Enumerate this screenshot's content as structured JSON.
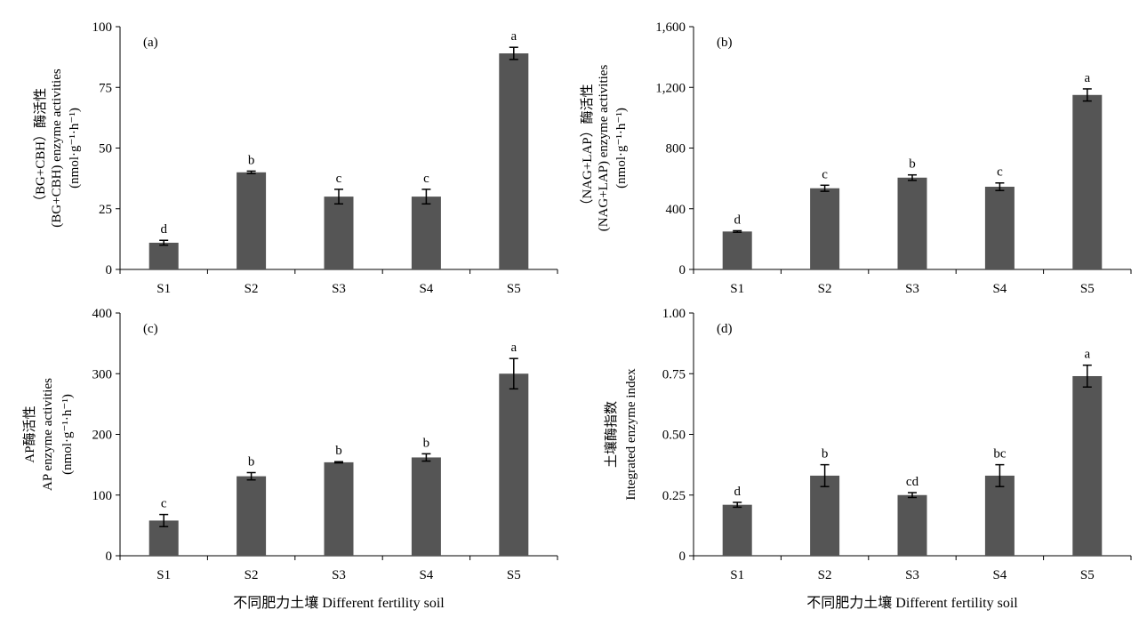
{
  "figure": {
    "xlabel_left": "不同肥力土壤 Different fertility soil",
    "xlabel_right": "不同肥力土壤 Different fertility soil"
  },
  "chart_data": [
    {
      "type": "bar",
      "panel_label": "(a)",
      "categories": [
        "S1",
        "S2",
        "S3",
        "S4",
        "S5"
      ],
      "values": [
        11,
        40,
        30,
        30,
        89
      ],
      "errors": [
        1,
        0.5,
        3,
        3,
        2.5
      ],
      "significance": [
        "d",
        "b",
        "c",
        "c",
        "a"
      ],
      "ylabel_lines": [
        "（BG+CBH）酶活性",
        "(BG+CBH) enzyme activities",
        "(nmol·g⁻¹·h⁻¹)"
      ],
      "ylim": [
        0,
        100
      ],
      "yticks": [
        0,
        25,
        50,
        75,
        100
      ],
      "ytick_labels": [
        "0",
        "25",
        "50",
        "75",
        "100"
      ],
      "bar_color": "#555555"
    },
    {
      "type": "bar",
      "panel_label": "(b)",
      "categories": [
        "S1",
        "S2",
        "S3",
        "S4",
        "S5"
      ],
      "values": [
        250,
        535,
        605,
        545,
        1150
      ],
      "errors": [
        5,
        20,
        18,
        25,
        40
      ],
      "significance": [
        "d",
        "c",
        "b",
        "c",
        "a"
      ],
      "ylabel_lines": [
        "（NAG+LAP）酶活性",
        "(NAG+LAP) enzyme activities",
        "(nmol·g⁻¹·h⁻¹)"
      ],
      "ylim": [
        0,
        1600
      ],
      "yticks": [
        0,
        400,
        800,
        1200,
        1600
      ],
      "ytick_labels": [
        "0",
        "400",
        "800",
        "1,200",
        "1,600"
      ],
      "bar_color": "#555555"
    },
    {
      "type": "bar",
      "panel_label": "(c)",
      "categories": [
        "S1",
        "S2",
        "S3",
        "S4",
        "S5"
      ],
      "values": [
        58,
        131,
        154,
        162,
        300
      ],
      "errors": [
        10,
        6,
        1,
        6,
        25
      ],
      "significance": [
        "c",
        "b",
        "b",
        "b",
        "a"
      ],
      "ylabel_lines": [
        "AP酶活性",
        "AP enzyme activities",
        "(nmol·g⁻¹·h⁻¹)"
      ],
      "ylim": [
        0,
        400
      ],
      "yticks": [
        0,
        100,
        200,
        300,
        400
      ],
      "ytick_labels": [
        "0",
        "100",
        "200",
        "300",
        "400"
      ],
      "bar_color": "#555555"
    },
    {
      "type": "bar",
      "panel_label": "(d)",
      "categories": [
        "S1",
        "S2",
        "S3",
        "S4",
        "S5"
      ],
      "values": [
        0.21,
        0.33,
        0.25,
        0.33,
        0.74
      ],
      "errors": [
        0.01,
        0.045,
        0.01,
        0.045,
        0.045
      ],
      "significance": [
        "d",
        "b",
        "cd",
        "bc",
        "a"
      ],
      "ylabel_lines": [
        "土壤酶指数",
        "Integrated enzyme index"
      ],
      "ylim": [
        0,
        1.0
      ],
      "yticks": [
        0,
        0.25,
        0.5,
        0.75,
        1.0
      ],
      "ytick_labels": [
        "0",
        "0.25",
        "0.50",
        "0.75",
        "1.00"
      ],
      "bar_color": "#555555"
    }
  ]
}
